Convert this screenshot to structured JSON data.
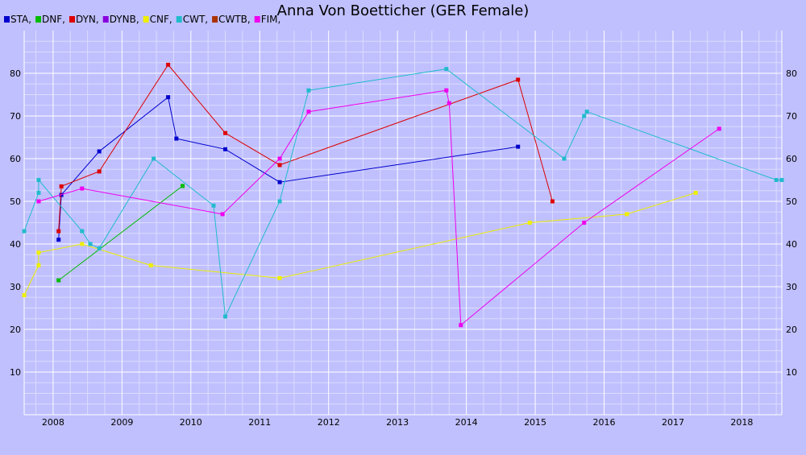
{
  "chart_data": {
    "type": "line",
    "title": "Anna Von Boetticher (GER Female)",
    "xlabel": "",
    "ylabel": "",
    "xlim": [
      2007.58,
      2018.58
    ],
    "ylim": [
      0,
      90
    ],
    "x_ticks": [
      "2008",
      "2009",
      "2010",
      "2011",
      "2012",
      "2013",
      "2014",
      "2015",
      "2016",
      "2017",
      "2018"
    ],
    "y_ticks": [
      "10",
      "20",
      "30",
      "40",
      "50",
      "60",
      "70",
      "80"
    ],
    "grid": true,
    "legend_position": "top-left",
    "colors": {
      "background": "#c0c0ff",
      "plot_background": "#c0c0ff",
      "grid_major": "#ffffff",
      "grid_minor": "#dcdcff"
    },
    "series": [
      {
        "name": "STA,",
        "color": "#0000cc",
        "points": [
          [
            2008.08,
            41
          ],
          [
            2008.12,
            51.5
          ],
          [
            2008.67,
            61.7
          ],
          [
            2009.67,
            74.4
          ],
          [
            2009.79,
            64.7
          ],
          [
            2010.5,
            62.2
          ],
          [
            2011.29,
            54.5
          ],
          [
            2014.75,
            62.8
          ]
        ]
      },
      {
        "name": "DNF,",
        "color": "#00bb00",
        "points": [
          [
            2008.08,
            31.5
          ],
          [
            2009.88,
            53.6
          ]
        ]
      },
      {
        "name": "DYN,",
        "color": "#dd0000",
        "points": [
          [
            2008.08,
            43
          ],
          [
            2008.12,
            53.5
          ],
          [
            2008.67,
            57
          ],
          [
            2009.67,
            82
          ],
          [
            2010.5,
            66
          ],
          [
            2011.29,
            58.5
          ],
          [
            2014.75,
            78.5
          ],
          [
            2015.25,
            50
          ]
        ]
      },
      {
        "name": "DYNB,",
        "color": "#8800dd",
        "points": []
      },
      {
        "name": "CNF,",
        "color": "#eeee00",
        "points": [
          [
            2007.58,
            28
          ],
          [
            2007.79,
            35
          ],
          [
            2007.79,
            38
          ],
          [
            2008.42,
            40
          ],
          [
            2009.42,
            35
          ],
          [
            2011.29,
            32
          ],
          [
            2014.92,
            45
          ],
          [
            2016.33,
            47
          ],
          [
            2017.33,
            52
          ]
        ]
      },
      {
        "name": "CWT,",
        "color": "#22bbcc",
        "points": [
          [
            2007.58,
            43
          ],
          [
            2007.79,
            52
          ],
          [
            2007.79,
            55
          ],
          [
            2008.42,
            43
          ],
          [
            2008.54,
            40
          ],
          [
            2008.67,
            39
          ],
          [
            2009.46,
            60
          ],
          [
            2010.33,
            49
          ],
          [
            2010.5,
            23
          ],
          [
            2011.29,
            50
          ],
          [
            2011.71,
            76
          ],
          [
            2013.71,
            81
          ],
          [
            2015.42,
            60
          ],
          [
            2015.71,
            70
          ],
          [
            2015.75,
            71
          ],
          [
            2018.5,
            55
          ],
          [
            2018.58,
            55
          ]
        ]
      },
      {
        "name": "CWTB,",
        "color": "#aa3300",
        "points": []
      },
      {
        "name": "FIM,",
        "color": "#ee00ee",
        "points": [
          [
            2007.79,
            50
          ],
          [
            2008.42,
            53
          ],
          [
            2010.46,
            47
          ],
          [
            2011.29,
            60
          ],
          [
            2011.71,
            71
          ],
          [
            2013.71,
            76
          ],
          [
            2013.75,
            73
          ],
          [
            2013.92,
            21
          ],
          [
            2015.71,
            45
          ],
          [
            2017.67,
            67
          ]
        ]
      }
    ]
  }
}
